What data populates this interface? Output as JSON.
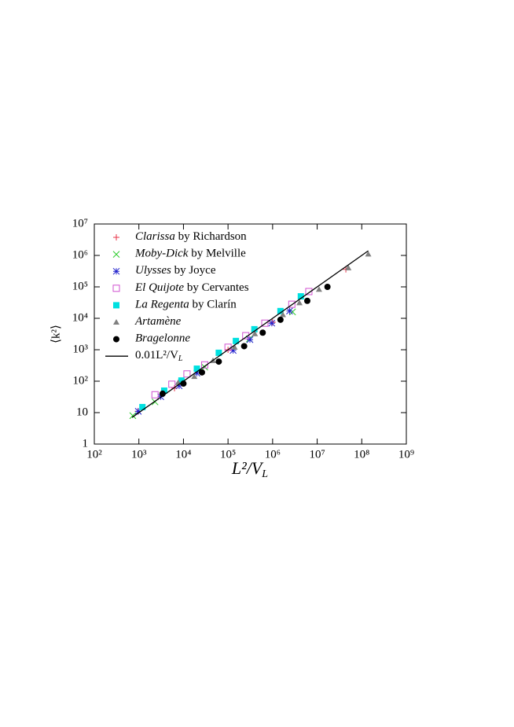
{
  "chart_data": {
    "type": "scatter",
    "xlog": true,
    "ylog": true,
    "xlabel": "L²/V",
    "xlabel_sub": "L",
    "ylabel": "⟨k²⟩",
    "xlim": [
      100,
      1000000000
    ],
    "ylim": [
      1,
      10000000
    ],
    "xticks": [
      {
        "value": 100,
        "label": "10²"
      },
      {
        "value": 1000,
        "label": "10³"
      },
      {
        "value": 10000,
        "label": "10⁴"
      },
      {
        "value": 100000,
        "label": "10⁵"
      },
      {
        "value": 1000000,
        "label": "10⁶"
      },
      {
        "value": 10000000,
        "label": "10⁷"
      },
      {
        "value": 100000000,
        "label": "10⁸"
      },
      {
        "value": 1000000000,
        "label": "10⁹"
      }
    ],
    "yticks": [
      1,
      10,
      {
        "value": 100,
        "label": "10²"
      },
      {
        "value": 1000,
        "label": "10³"
      },
      {
        "value": 10000,
        "label": "10⁴"
      },
      {
        "value": 100000,
        "label": "10⁵"
      },
      {
        "value": 1000000,
        "label": "10⁶"
      },
      {
        "value": 10000000,
        "label": "10⁷"
      }
    ],
    "legend": "top-left",
    "series": [
      {
        "name": "Clarissa",
        "name_rest": "by Richardson",
        "style": "plus",
        "color": "#e8344a",
        "x": [
          950,
          6300,
          100000,
          1000000,
          44000000
        ],
        "values": [
          11,
          60,
          1000,
          7500,
          360000
        ]
      },
      {
        "name": "Moby-Dick",
        "name_rest": "by Melville",
        "style": "cross",
        "color": "#2ecc2e",
        "x": [
          730,
          2300,
          30000,
          300000,
          2800000
        ],
        "values": [
          8,
          22,
          280,
          2200,
          16000
        ]
      },
      {
        "name": "Ulysses",
        "name_rest": "by Joyce",
        "style": "star",
        "color": "#2222cc",
        "x": [
          970,
          3100,
          8000,
          20000,
          130000,
          310000,
          960000,
          2400000
        ],
        "values": [
          11,
          32,
          71,
          180,
          950,
          2100,
          7000,
          17000
        ]
      },
      {
        "name": "El Quijote",
        "name_rest": "by Cervantes",
        "style": "square-open",
        "color": "#d050d0",
        "x": [
          2300,
          5500,
          12000,
          30000,
          100000,
          250000,
          670000,
          2700000,
          6500000
        ],
        "values": [
          37,
          80,
          170,
          330,
          1200,
          2800,
          7000,
          28000,
          71000
        ]
      },
      {
        "name": "La Regenta",
        "name_rest": "by Clarín",
        "style": "square",
        "color": "#00e0e0",
        "x": [
          1200,
          3700,
          9000,
          20000,
          62000,
          150000,
          390000,
          1500000,
          4300000
        ],
        "values": [
          15,
          50,
          105,
          250,
          800,
          1900,
          4500,
          17000,
          50000
        ]
      },
      {
        "name": "Artamène",
        "name_rest": "",
        "style": "triangle",
        "color": "#808080",
        "x": [
          7600,
          17500,
          46000,
          140000,
          400000,
          1700000,
          4000000,
          11000000,
          50000000,
          140000000
        ],
        "values": [
          90,
          140,
          450,
          1200,
          3200,
          13000,
          31000,
          83000,
          400000,
          1100000
        ]
      },
      {
        "name": "Bragelonne",
        "name_rest": "",
        "style": "circle",
        "color": "#000000",
        "x": [
          3400,
          10000,
          26000,
          62000,
          230000,
          600000,
          1500000,
          6000000,
          17000000
        ],
        "values": [
          40,
          84,
          190,
          420,
          1300,
          3500,
          9000,
          36000,
          100000
        ]
      },
      {
        "name": "0.01L²/V",
        "name_sub": "L",
        "style": "line",
        "color": "#000000",
        "x": [
          700,
          140000000
        ],
        "values": [
          7,
          1400000
        ]
      }
    ]
  }
}
